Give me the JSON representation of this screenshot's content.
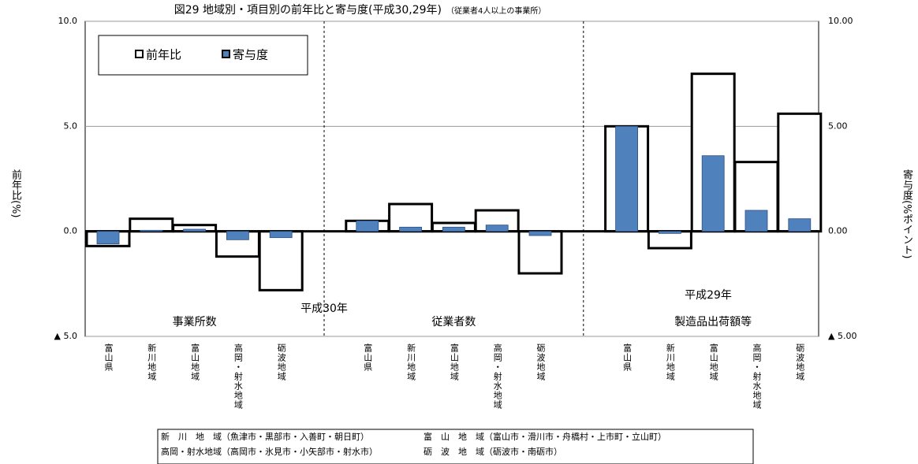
{
  "chart_data": {
    "type": "bar",
    "title": "図29 地域別・項目別の前年比と寄与度(平成30,29年)",
    "subtitle": "（従業者4人以上の事業所）",
    "y_label": "前年比(%)",
    "y2_label": "寄与度(%ポイント)",
    "categories": [
      "富山県",
      "新川地域",
      "富山地域",
      "高岡・射水地域",
      "砺波地域",
      "富山県",
      "新川地域",
      "富山地域",
      "高岡・射水地域",
      "砺波地域",
      "富山県",
      "新川地域",
      "富山地域",
      "高岡・射水地域",
      "砺波地域"
    ],
    "group_labels": [
      "事業所数",
      "従業者数",
      "製造品出荷額等"
    ],
    "annotations": [
      "平成30年",
      "平成29年"
    ],
    "series": [
      {
        "name": "前年比",
        "color": "#ffffff",
        "values": [
          -0.7,
          0.6,
          0.3,
          -1.2,
          -2.8,
          0.5,
          1.3,
          0.4,
          1.0,
          -2.0,
          5.0,
          -0.8,
          7.5,
          3.3,
          5.6
        ]
      },
      {
        "name": "寄与度",
        "color": "#4f81bd",
        "axis": "y2",
        "values": [
          -0.6,
          0.05,
          0.1,
          -0.4,
          -0.3,
          0.5,
          0.2,
          0.2,
          0.3,
          -0.2,
          5.0,
          -0.1,
          3.6,
          1.0,
          0.6
        ]
      }
    ],
    "ylim": [
      -5,
      10
    ],
    "yticks": [
      {
        "value": -5,
        "label": "▲ 5.0"
      },
      {
        "value": 0,
        "label": "0.0"
      },
      {
        "value": 5,
        "label": "5.0"
      },
      {
        "value": 10,
        "label": "10.0"
      }
    ],
    "y2lim": [
      -5,
      10
    ],
    "y2ticks": [
      {
        "value": -5,
        "label": "▲ 5.00"
      },
      {
        "value": 0,
        "label": "0.00"
      },
      {
        "value": 5,
        "label": "5.00"
      },
      {
        "value": 10,
        "label": "10.00"
      }
    ],
    "grid": true,
    "legend": "top-left",
    "notes": [
      "新　川　地　域（魚津市・黒部市・入善町・朝日町）",
      "富　山　地　域（富山市・滑川市・舟橋村・上市町・立山町）",
      "高岡・射水地域（高岡市・氷見市・小矢部市・射水市）",
      "砺　波　地　域（砺波市・南砺市）"
    ]
  }
}
